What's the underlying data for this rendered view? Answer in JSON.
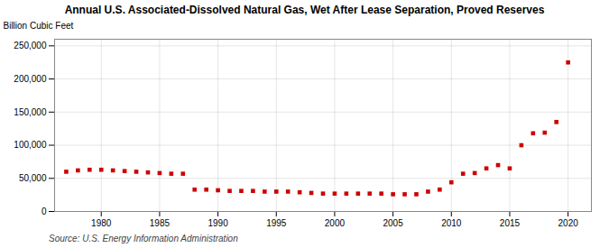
{
  "chart_data": {
    "type": "scatter",
    "title": "Annual U.S. Associated-Dissolved Natural Gas, Wet After Lease Separation, Proved Reserves",
    "ylabel": "Billion Cubic Feet",
    "source": "Source: U.S. Energy Information Administration",
    "x": [
      1977,
      1978,
      1979,
      1980,
      1981,
      1982,
      1983,
      1984,
      1985,
      1986,
      1987,
      1988,
      1989,
      1990,
      1991,
      1992,
      1993,
      1994,
      1995,
      1996,
      1997,
      1998,
      1999,
      2000,
      2001,
      2002,
      2003,
      2004,
      2005,
      2006,
      2007,
      2008,
      2009,
      2010,
      2011,
      2012,
      2013,
      2014,
      2015,
      2016,
      2017,
      2018,
      2019,
      2020
    ],
    "values": [
      60000,
      62000,
      63000,
      63000,
      62000,
      61000,
      60000,
      59000,
      58000,
      57000,
      57000,
      33000,
      33000,
      32000,
      31000,
      31000,
      31000,
      30000,
      30000,
      30000,
      29000,
      28000,
      27000,
      27000,
      27000,
      27000,
      27000,
      27000,
      26000,
      26000,
      26000,
      30000,
      33000,
      44000,
      57000,
      58000,
      65000,
      70000,
      65000,
      100000,
      118000,
      119000,
      135000,
      225000
    ],
    "color": "#cc0000",
    "marker": "square",
    "xlim": [
      1976,
      2022
    ],
    "ylim": [
      0,
      260000
    ],
    "xticks": [
      1980,
      1985,
      1990,
      1995,
      2000,
      2005,
      2010,
      2015,
      2020
    ],
    "yticks": [
      0,
      {
        "value": 50000,
        "label": "50,000"
      },
      {
        "value": 100000,
        "label": "100,000"
      },
      {
        "value": 150000,
        "label": "150,000"
      },
      {
        "value": 200000,
        "label": "200,000"
      },
      {
        "value": 250000,
        "label": "250,000"
      }
    ],
    "grid": true
  }
}
